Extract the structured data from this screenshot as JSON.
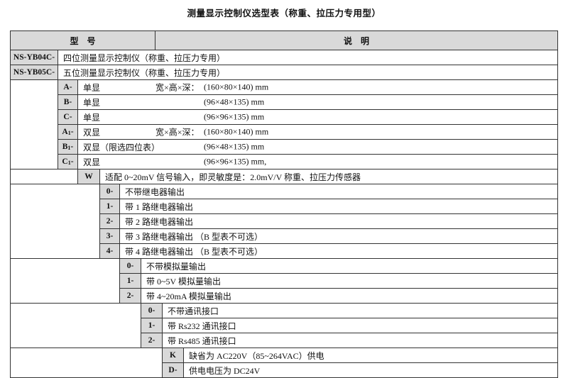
{
  "page": {
    "title": "测量显示控制仪选型表（称重、拉压力专用型）"
  },
  "colors": {
    "cell_shade": "#d9d9d9",
    "border": "#333333"
  },
  "table": {
    "header": {
      "model": "型　号",
      "desc": "说　明"
    },
    "groups": {
      "model": {
        "rows": [
          {
            "code": "NS-YB04C-",
            "desc": "四位测量显示控制仪（称重、拉压力专用）"
          },
          {
            "code": "NS-YB05C-",
            "desc": "五位测量显示控制仪（称重、拉压力专用）"
          }
        ]
      },
      "size": {
        "rows": [
          {
            "code": "A",
            "sub": "",
            "dash": "-",
            "label": "单显",
            "dim_prefix": "宽×高×深：",
            "dims": "(160×80×140) mm"
          },
          {
            "code": "B",
            "sub": "",
            "dash": "-",
            "label": "单显",
            "dim_prefix": "",
            "dims": "(96×48×135) mm"
          },
          {
            "code": "C",
            "sub": "",
            "dash": "-",
            "label": "单显",
            "dim_prefix": "",
            "dims": "(96×96×135) mm"
          },
          {
            "code": "A",
            "sub": "1",
            "dash": "-",
            "label": "双显",
            "dim_prefix": "宽×高×深：",
            "dims": "(160×80×140) mm"
          },
          {
            "code": "B",
            "sub": "1",
            "dash": "-",
            "label": "双显（限选四位表）",
            "dim_prefix": "",
            "dims": "(96×48×135) mm"
          },
          {
            "code": "C",
            "sub": "1",
            "dash": "-",
            "label": "双显",
            "dim_prefix": "",
            "dims": "(96×96×135) mm,"
          }
        ]
      },
      "signal": {
        "rows": [
          {
            "code": "W",
            "desc": "适配 0~20mV 信号输入，即灵敏度是：2.0mV/V 称重、拉压力传感器"
          }
        ]
      },
      "relay": {
        "rows": [
          {
            "code": "0-",
            "desc": "不带继电器输出"
          },
          {
            "code": "1-",
            "desc": "带 1 路继电器输出"
          },
          {
            "code": "2-",
            "desc": "带 2 路继电器输出"
          },
          {
            "code": "3-",
            "desc": "带 3 路继电器输出 （B 型表不可选）"
          },
          {
            "code": "4-",
            "desc": "带 4 路继电器输出 （B 型表不可选）"
          }
        ]
      },
      "analog": {
        "rows": [
          {
            "code": "0-",
            "desc": "不带模拟量输出"
          },
          {
            "code": "1-",
            "desc": "带 0~5V 模拟量输出"
          },
          {
            "code": "2-",
            "desc": "带 4~20mA 模拟量输出"
          }
        ]
      },
      "comm": {
        "rows": [
          {
            "code": "0-",
            "desc": "不带通讯接口"
          },
          {
            "code": "1-",
            "desc": "带 Rs232 通讯接口"
          },
          {
            "code": "2-",
            "desc": "带 Rs485 通讯接口"
          }
        ]
      },
      "power": {
        "rows": [
          {
            "code": "K",
            "desc": "缺省为 AC220V（85~264VAC）供电"
          },
          {
            "code": "D-",
            "desc": "供电电压为 DC24V"
          }
        ]
      }
    }
  }
}
